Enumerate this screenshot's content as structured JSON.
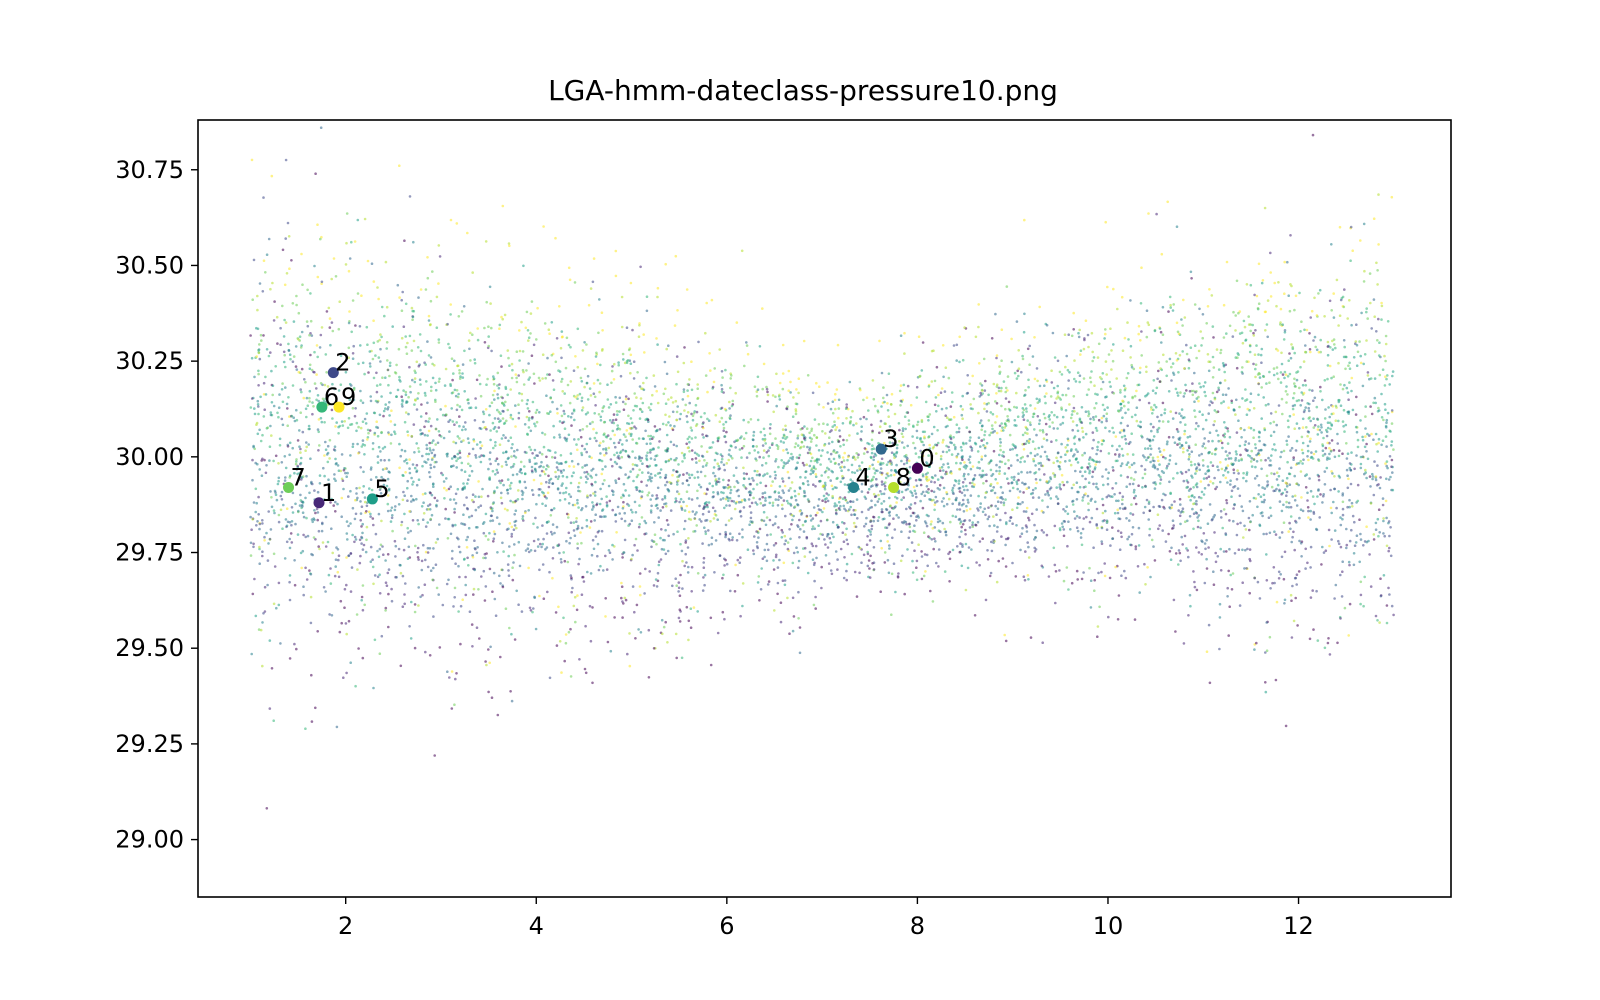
{
  "chart_data": {
    "type": "scatter",
    "title": "LGA-hmm-dateclass-pressure10.png",
    "xlabel": "",
    "ylabel": "",
    "xlim": [
      0.45,
      13.6
    ],
    "ylim": [
      28.85,
      30.88
    ],
    "x_ticks": [
      2,
      4,
      6,
      8,
      10,
      12
    ],
    "x_tick_labels": [
      "2",
      "4",
      "6",
      "8",
      "10",
      "12"
    ],
    "y_ticks": [
      29.0,
      29.25,
      29.5,
      29.75,
      30.0,
      30.25,
      30.5,
      30.75
    ],
    "y_tick_labels": [
      "29.00",
      "29.25",
      "29.50",
      "29.75",
      "30.00",
      "30.25",
      "30.50",
      "30.75"
    ],
    "grid": false,
    "legend": "none",
    "colormap": "viridis",
    "class_colors": [
      "#440154",
      "#482878",
      "#3e4989",
      "#31688e",
      "#26828e",
      "#1f9e89",
      "#35b779",
      "#6ece58",
      "#b5de2b",
      "#fde725"
    ],
    "centroids": [
      {
        "label": "0",
        "x": 8.0,
        "y": 29.97
      },
      {
        "label": "1",
        "x": 1.72,
        "y": 29.88
      },
      {
        "label": "2",
        "x": 1.87,
        "y": 30.22
      },
      {
        "label": "3",
        "x": 7.62,
        "y": 30.02
      },
      {
        "label": "4",
        "x": 7.33,
        "y": 29.92
      },
      {
        "label": "5",
        "x": 2.28,
        "y": 29.89
      },
      {
        "label": "6",
        "x": 1.75,
        "y": 30.13
      },
      {
        "label": "7",
        "x": 1.4,
        "y": 29.92
      },
      {
        "label": "8",
        "x": 7.75,
        "y": 29.92
      },
      {
        "label": "9",
        "x": 1.93,
        "y": 30.13
      }
    ],
    "observations": {
      "x_range": [
        1.0,
        13.0
      ],
      "mean_profile": [
        {
          "x": 1.0,
          "y": 30.05
        },
        {
          "x": 4.0,
          "y": 29.98
        },
        {
          "x": 7.0,
          "y": 29.93
        },
        {
          "x": 10.0,
          "y": 30.02
        },
        {
          "x": 13.0,
          "y": 30.04
        }
      ],
      "spread_profile": [
        {
          "x": 1.0,
          "y": 0.27
        },
        {
          "x": 4.0,
          "y": 0.22
        },
        {
          "x": 7.5,
          "y": 0.12
        },
        {
          "x": 10.0,
          "y": 0.19
        },
        {
          "x": 13.0,
          "y": 0.25
        }
      ],
      "point_color_opacity": 0.55
    }
  }
}
